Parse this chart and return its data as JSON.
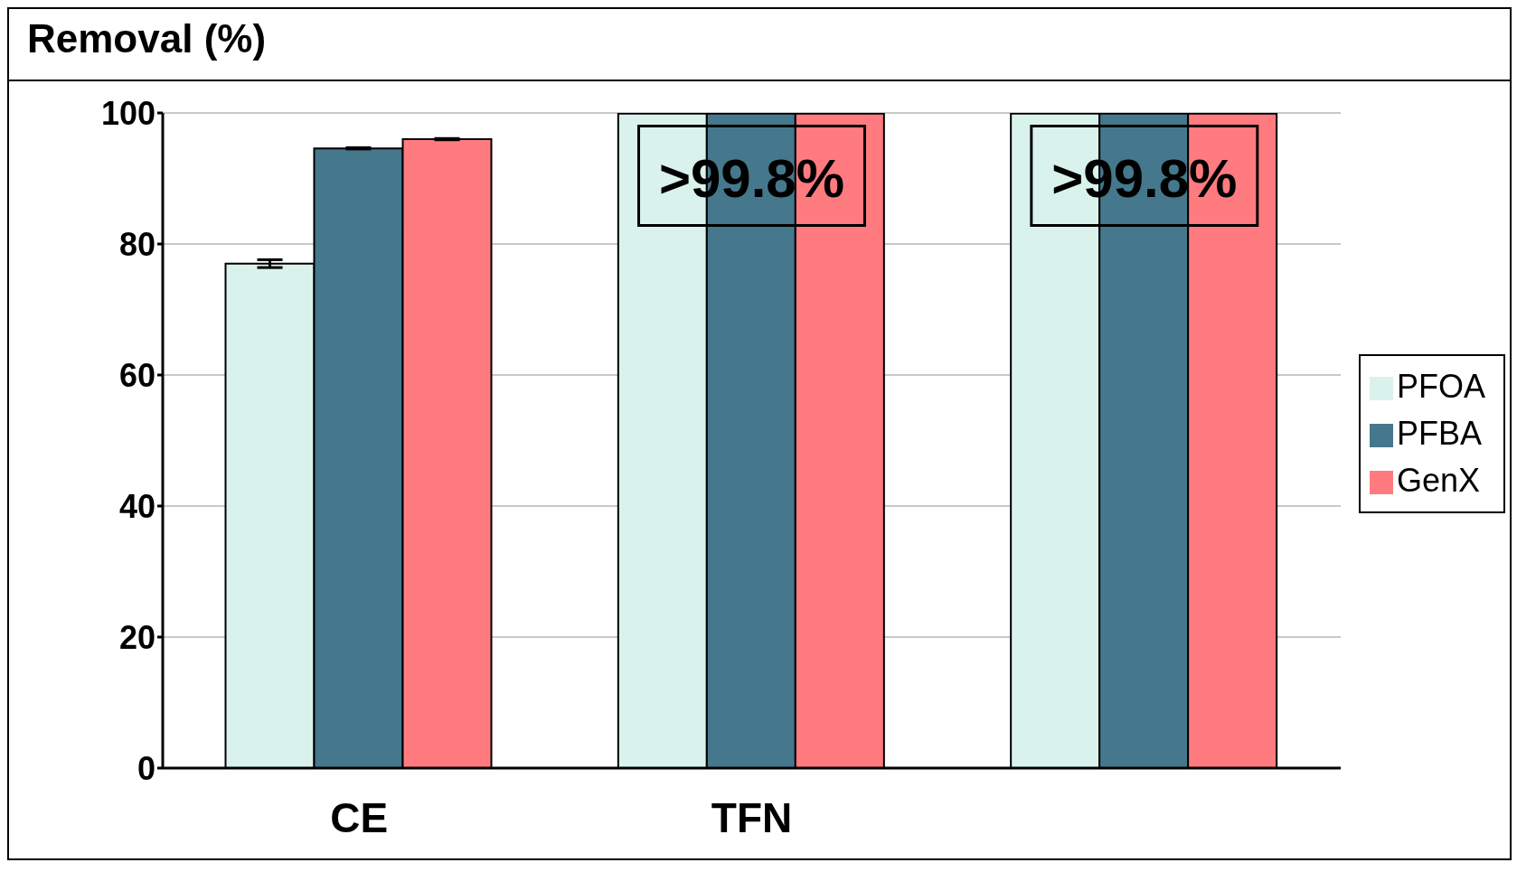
{
  "chart_data": {
    "type": "bar",
    "title": "Removal (%)",
    "categories": [
      "CE",
      "TFN",
      null
    ],
    "series": [
      {
        "name": "PFOA",
        "color": "#daf2ec",
        "values": [
          77.0,
          99.9,
          99.9
        ],
        "errors": [
          0.6,
          null,
          null
        ]
      },
      {
        "name": "PFBA",
        "color": "#45788c",
        "values": [
          94.6,
          99.9,
          99.9
        ],
        "errors": [
          0.1,
          null,
          null
        ]
      },
      {
        "name": "GenX",
        "color": "#ff7b80",
        "values": [
          96.0,
          99.9,
          99.9
        ],
        "errors": [
          0.1,
          null,
          null
        ]
      }
    ],
    "ylim": [
      0,
      100
    ],
    "yticks": [
      0,
      20,
      40,
      60,
      80,
      100
    ],
    "grid": "y",
    "legend": "right",
    "annotations": [
      ">99.8%",
      ">99.8%"
    ]
  }
}
